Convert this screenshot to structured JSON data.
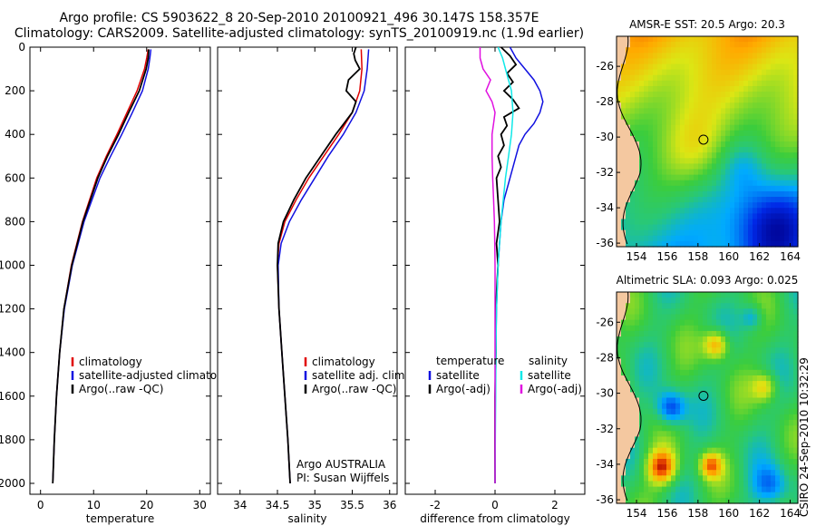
{
  "figure": {
    "title_line1": "Argo profile: CS 5903622_8 20-Sep-2010 20100921_496 30.147S 158.357E",
    "title_line2": "Climatology: CARS2009. Satellite-adjusted climatology: synTS_20100919.nc (1.9d earlier)",
    "side_note": "CSIRO 24-Sep-2010 10:32:29",
    "credit_line1": "Argo AUSTRALIA",
    "credit_line2": "PI: Susan Wijffels"
  },
  "colors": {
    "red": "#e00000",
    "blue": "#1010e0",
    "black": "#000000",
    "cyan": "#10e8e8",
    "magenta": "#e010e0",
    "land": "#f4c8a0",
    "coast": "#000000"
  },
  "chart_data": [
    {
      "type": "line",
      "name": "temperature",
      "xlabel": "temperature",
      "xlim": [
        -2,
        32
      ],
      "xticks": [
        0,
        10,
        20,
        30
      ],
      "ylim": [
        0,
        2050
      ],
      "yticks": [
        0,
        200,
        400,
        600,
        800,
        1000,
        1200,
        1400,
        1600,
        1800,
        2000
      ],
      "series": [
        {
          "name": "climatology",
          "color": "#e00000",
          "depth": [
            10,
            50,
            100,
            200,
            300,
            400,
            500,
            600,
            800,
            1000,
            1200,
            1400,
            1600,
            1800,
            2000
          ],
          "values": [
            20.3,
            20.0,
            19.6,
            18.2,
            16.3,
            14.4,
            12.4,
            10.6,
            7.9,
            5.8,
            4.4,
            3.6,
            3.0,
            2.6,
            2.3
          ]
        },
        {
          "name": "satellite-adjusted climatology",
          "color": "#1010e0",
          "depth": [
            10,
            50,
            100,
            200,
            300,
            400,
            500,
            600,
            800,
            1000,
            1200,
            1400,
            1600,
            1800,
            2000
          ],
          "values": [
            20.8,
            20.6,
            20.3,
            19.2,
            17.3,
            15.3,
            13.2,
            11.2,
            8.2,
            6.0,
            4.5,
            3.6,
            3.0,
            2.6,
            2.3
          ]
        },
        {
          "name": "Argo(..raw -QC)",
          "color": "#000000",
          "depth": [
            10,
            50,
            100,
            200,
            300,
            400,
            500,
            600,
            800,
            1000,
            1200,
            1400,
            1600,
            1800,
            2000
          ],
          "values": [
            20.4,
            20.3,
            19.9,
            18.6,
            16.6,
            14.7,
            12.6,
            10.8,
            8.0,
            5.9,
            4.4,
            3.6,
            3.0,
            2.6,
            2.3
          ]
        }
      ],
      "legend": [
        "climatology",
        "satellite-adjusted climatology",
        "Argo(..raw -QC)"
      ]
    },
    {
      "type": "line",
      "name": "salinity",
      "xlabel": "salinity",
      "xlim": [
        33.7,
        36.1
      ],
      "xticks": [
        34,
        34.5,
        35,
        35.5,
        36
      ],
      "ylim": [
        0,
        2050
      ],
      "series": [
        {
          "name": "climatology",
          "color": "#e00000",
          "depth": [
            10,
            100,
            200,
            300,
            400,
            500,
            600,
            700,
            800,
            900,
            1000,
            1200,
            1400,
            1600,
            1800,
            2000
          ],
          "values": [
            35.62,
            35.63,
            35.6,
            35.5,
            35.32,
            35.12,
            34.92,
            34.75,
            34.6,
            34.52,
            34.5,
            34.52,
            34.56,
            34.6,
            34.64,
            34.67
          ]
        },
        {
          "name": "satellite adj. clim.",
          "color": "#1010e0",
          "depth": [
            10,
            100,
            200,
            300,
            400,
            500,
            600,
            700,
            800,
            900,
            1000,
            1200,
            1400,
            1600,
            1800,
            2000
          ],
          "values": [
            35.72,
            35.7,
            35.66,
            35.55,
            35.38,
            35.18,
            35.0,
            34.82,
            34.66,
            34.55,
            34.51,
            34.52,
            34.56,
            34.6,
            34.64,
            34.67
          ]
        },
        {
          "name": "Argo(..raw -QC)",
          "color": "#000000",
          "depth": [
            0,
            30,
            60,
            100,
            150,
            200,
            250,
            300,
            400,
            500,
            600,
            700,
            800,
            900,
            1000,
            1200,
            1400,
            1600,
            1800,
            2000
          ],
          "values": [
            35.55,
            35.52,
            35.54,
            35.6,
            35.45,
            35.42,
            35.55,
            35.5,
            35.28,
            35.08,
            34.88,
            34.72,
            34.58,
            34.51,
            34.5,
            34.52,
            34.56,
            34.6,
            34.64,
            34.67
          ]
        }
      ],
      "legend": [
        "climatology",
        "satellite adj. clim.",
        "Argo(..raw -QC)"
      ]
    },
    {
      "type": "line",
      "name": "difference",
      "xlabel": "difference from climatology",
      "xlim": [
        -3,
        3
      ],
      "xticks": [
        -2,
        0,
        2
      ],
      "ylim": [
        0,
        2050
      ],
      "series": [
        {
          "name": "temperature satellite",
          "color": "#1010e0",
          "depth": [
            0,
            50,
            100,
            150,
            200,
            250,
            300,
            350,
            400,
            450,
            500,
            600,
            700,
            800,
            1000,
            1200,
            1400,
            1600,
            1800,
            2000
          ],
          "values": [
            0.5,
            0.7,
            1.0,
            1.3,
            1.5,
            1.6,
            1.5,
            1.3,
            1.0,
            0.8,
            0.7,
            0.5,
            0.3,
            0.2,
            0.1,
            0.05,
            0.02,
            0.01,
            0,
            0
          ]
        },
        {
          "name": "temperature Argo(-adj)",
          "color": "#000000",
          "depth": [
            0,
            40,
            80,
            120,
            160,
            200,
            240,
            280,
            320,
            360,
            400,
            450,
            500,
            550,
            600,
            700,
            800,
            900,
            1000,
            1200,
            1400,
            1600,
            1800,
            2000
          ],
          "values": [
            0.2,
            0.5,
            0.7,
            0.4,
            0.6,
            0.3,
            0.6,
            0.8,
            0.3,
            0.4,
            0.2,
            0.3,
            0.1,
            0.2,
            0.05,
            0.1,
            0.15,
            0.05,
            0.1,
            0.02,
            0.03,
            0.0,
            0.0,
            0.0
          ]
        },
        {
          "name": "salinity satellite",
          "color": "#10e8e8",
          "depth": [
            0,
            50,
            100,
            200,
            300,
            400,
            500,
            600,
            800,
            1000,
            1200,
            1400,
            1600,
            1800,
            2000
          ],
          "values": [
            0.1,
            0.25,
            0.35,
            0.55,
            0.6,
            0.55,
            0.45,
            0.35,
            0.2,
            0.1,
            0.05,
            0.03,
            0.02,
            0.01,
            0
          ]
        },
        {
          "name": "salinity Argo(-adj)",
          "color": "#e010e0",
          "depth": [
            0,
            50,
            100,
            150,
            200,
            250,
            300,
            350,
            400,
            500,
            600,
            700,
            800,
            900,
            1000,
            1200,
            1400,
            1600,
            1800,
            2000
          ],
          "values": [
            -0.5,
            -0.5,
            -0.4,
            -0.15,
            -0.3,
            -0.1,
            0.0,
            -0.05,
            -0.1,
            -0.1,
            -0.08,
            -0.05,
            -0.02,
            -0.01,
            0,
            0,
            0,
            0,
            0,
            0
          ]
        }
      ],
      "legend_headers": [
        "temperature",
        "salinity"
      ],
      "legend": [
        "satellite",
        "Argo(-adj)",
        "satellite",
        "Argo(-adj)"
      ]
    },
    {
      "type": "heatmap",
      "name": "sst-map",
      "title": "AMSR-E SST: 20.5 Argo: 20.3",
      "xlim": [
        152.7,
        164.5
      ],
      "ylim": [
        -36.2,
        -24.3
      ],
      "xticks": [
        154,
        156,
        158,
        160,
        162,
        164
      ],
      "yticks": [
        -26,
        -28,
        -30,
        -32,
        -34,
        -36
      ],
      "marker": {
        "lon": 158.357,
        "lat": -30.147
      }
    },
    {
      "type": "heatmap",
      "name": "sla-map",
      "title": "Altimetric SLA: 0.093 Argo: 0.025",
      "xlim": [
        152.7,
        164.5
      ],
      "ylim": [
        -36.2,
        -24.3
      ],
      "xticks": [
        154,
        156,
        158,
        160,
        162,
        164
      ],
      "yticks": [
        -26,
        -28,
        -30,
        -32,
        -34,
        -36
      ],
      "marker": {
        "lon": 158.357,
        "lat": -30.147
      }
    }
  ]
}
